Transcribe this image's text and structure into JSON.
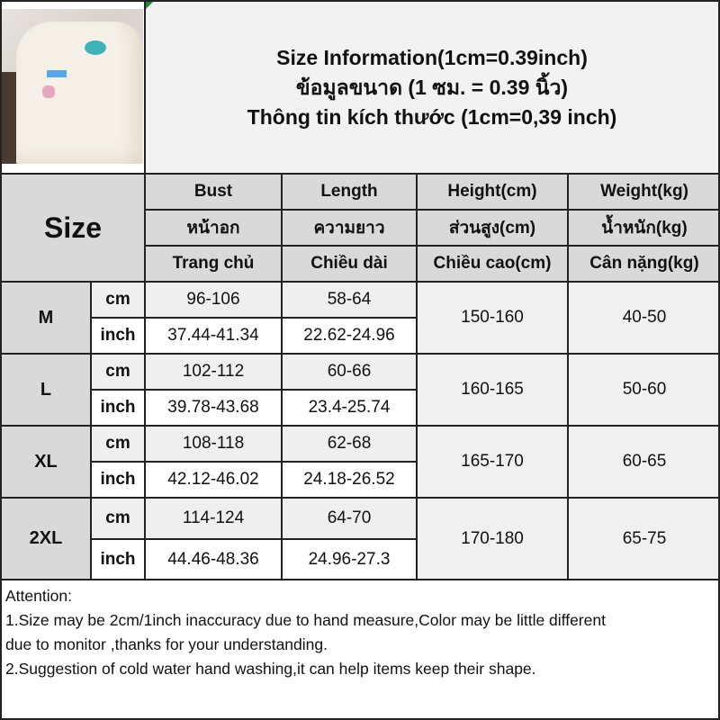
{
  "header": {
    "line1": "Size Information(1cm=0.39inch)",
    "line2": "ข้อมูลขนาด (1 ซม. = 0.39 นิ้ว)",
    "line3": "Thông tin kích thước (1cm=0,39 inch)"
  },
  "table": {
    "size_label": "Size",
    "columns": [
      {
        "en": "Bust",
        "th": "หน้าอก",
        "vi": "Trang chủ"
      },
      {
        "en": "Length",
        "th": "ความยาว",
        "vi": "Chiều dài"
      },
      {
        "en": "Height(cm)",
        "th": "ส่วนสูง(cm)",
        "vi": "Chiều cao(cm)"
      },
      {
        "en": "Weight(kg)",
        "th": "น้ำหนัก(kg)",
        "vi": "Cân nặng(kg)"
      }
    ],
    "unit_cm": "cm",
    "unit_inch": "inch",
    "rows": [
      {
        "size": "M",
        "bust_cm": "96-106",
        "length_cm": "58-64",
        "bust_inch": "37.44-41.34",
        "length_inch": "22.62-24.96",
        "height": "150-160",
        "weight": "40-50"
      },
      {
        "size": "L",
        "bust_cm": "102-112",
        "length_cm": "60-66",
        "bust_inch": "39.78-43.68",
        "length_inch": "23.4-25.74",
        "height": "160-165",
        "weight": "50-60"
      },
      {
        "size": "XL",
        "bust_cm": "108-118",
        "length_cm": "62-68",
        "bust_inch": "42.12-46.02",
        "length_inch": "24.18-26.52",
        "height": "165-170",
        "weight": "60-65"
      },
      {
        "size": "2XL",
        "bust_cm": "114-124",
        "length_cm": "64-70",
        "bust_inch": "44.46-48.36",
        "length_inch": "24.96-27.3",
        "height": "170-180",
        "weight": "65-75"
      }
    ]
  },
  "notes": {
    "title": "Attention:",
    "line1": "1.Size may be 2cm/1inch inaccuracy due to hand measure,Color may be little different",
    "line2": "due to monitor ,thanks for your understanding.",
    "line3": "2.Suggestion of cold water hand washing,it can help items keep their shape."
  }
}
